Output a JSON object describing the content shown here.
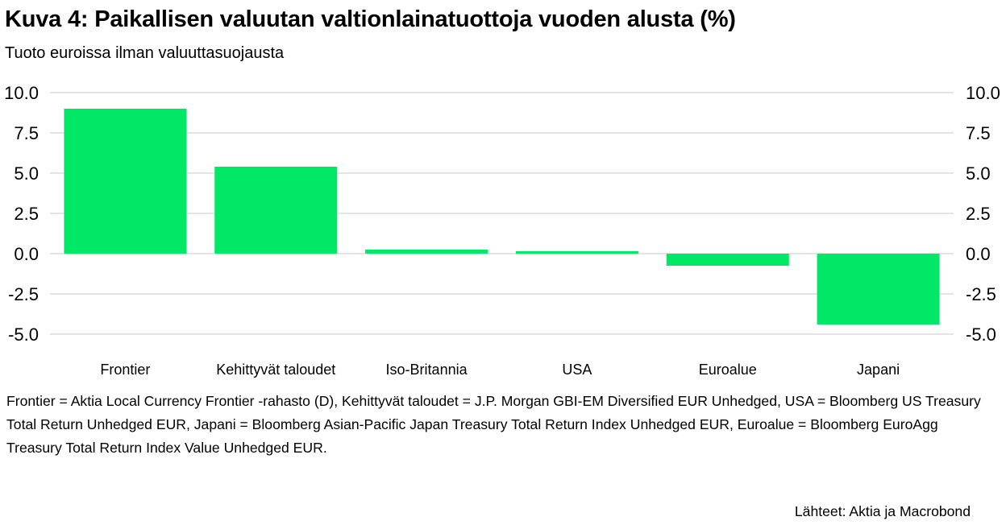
{
  "header": {
    "title": "Kuva 4: Paikallisen valuutan valtionlainatuottoja vuoden alusta (%)",
    "subtitle": "Tuoto euroissa ilman valuuttasuojausta"
  },
  "footer": {
    "note": "Frontier = Aktia Local Currency Frontier -rahasto (D), Kehittyvät taloudet = J.P. Morgan GBI-EM Diversified EUR Unhedged, USA = Bloomberg US Treasury Total Return Unhedged EUR, Japani = Bloomberg Asian-Pacific Japan Treasury Total Return Index Unhedged EUR, Euroalue = Bloomberg EuroAgg Treasury Total Return Index Value Unhedged EUR.",
    "source": "Lähteet: Aktia ja Macrobond"
  },
  "chart_data": {
    "type": "bar",
    "title": "Kuva 4: Paikallisen valuutan valtionlainatuottoja vuoden alusta (%)",
    "subtitle": "Tuoto euroissa ilman valuuttasuojausta",
    "categories": [
      "Frontier",
      "Kehittyvät taloudet",
      "Iso-Britannia",
      "USA",
      "Euroalue",
      "Japani"
    ],
    "values": [
      9.0,
      5.4,
      0.25,
      0.15,
      -0.75,
      -4.4
    ],
    "ylim": [
      -5.0,
      10.0
    ],
    "yticks": [
      "10.0",
      "7.5",
      "5.0",
      "2.5",
      "0.0",
      "-2.5",
      "-5.0"
    ],
    "ytick_values": [
      10.0,
      7.5,
      5.0,
      2.5,
      0.0,
      -2.5,
      -5.0
    ],
    "y_axis_sides": "left and right",
    "grid": true,
    "legend": "none",
    "bar_color": "#00e865",
    "grid_color": "#c8c8c8"
  }
}
